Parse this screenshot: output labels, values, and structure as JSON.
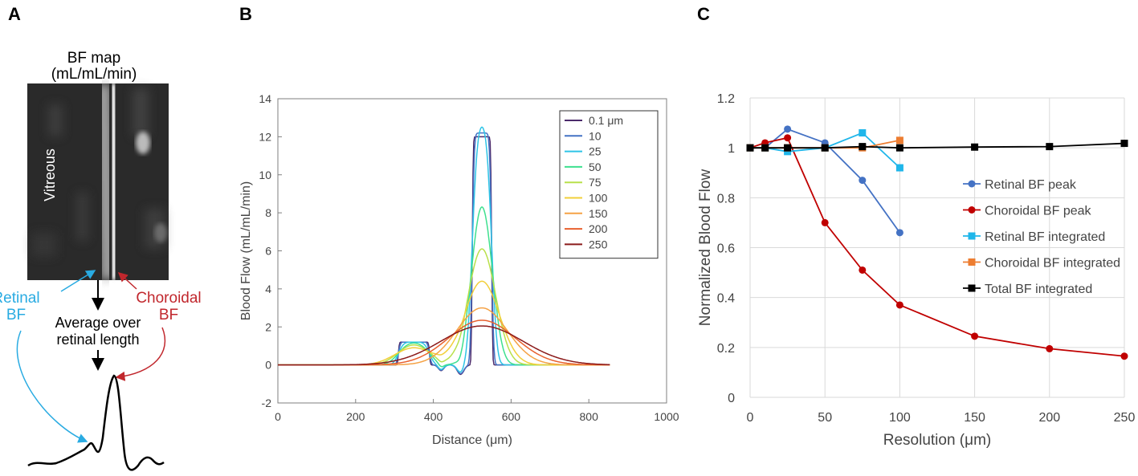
{
  "panels": {
    "a": "A",
    "b": "B",
    "c": "C"
  },
  "panel_a": {
    "title_line1": "BF map",
    "title_line2": "(mL/mL/min)",
    "vitreous_label": "Vitreous",
    "retinal_line1": "Retinal",
    "retinal_line2": "BF",
    "choroidal_line1": "Choroidal",
    "choroidal_line2": "BF",
    "average_line1": "Average over",
    "average_line2": "retinal length",
    "colors": {
      "retinal": "#29abe2",
      "choroidal": "#c1272d"
    }
  },
  "chart_data": [
    {
      "id": "B",
      "type": "line",
      "xlabel": "Distance (μm)",
      "ylabel": "Blood Flow (mL/mL/min)",
      "xlim": [
        0,
        1000
      ],
      "ylim": [
        -2,
        14
      ],
      "xticks": [
        0,
        200,
        400,
        600,
        800,
        1000
      ],
      "yticks": [
        -2,
        0,
        2,
        4,
        6,
        8,
        10,
        12,
        14
      ],
      "legend_position": "top-right",
      "legend_unit": "μm",
      "series": [
        {
          "name": "0.1",
          "color": "#4b2a6b",
          "retinal_peak": 1.2,
          "choroidal_peak": 12.0,
          "sigma": 1
        },
        {
          "name": "10",
          "color": "#4472c4",
          "retinal_peak": 1.2,
          "choroidal_peak": 12.2,
          "sigma": 10
        },
        {
          "name": "25",
          "color": "#2ec4e6",
          "retinal_peak": 1.2,
          "choroidal_peak": 12.5,
          "sigma": 25
        },
        {
          "name": "50",
          "color": "#3ee08f",
          "retinal_peak": 1.15,
          "choroidal_peak": 8.3,
          "sigma": 50
        },
        {
          "name": "75",
          "color": "#b8e04a",
          "retinal_peak": 1.05,
          "choroidal_peak": 6.1,
          "sigma": 75
        },
        {
          "name": "100",
          "color": "#f2cf3a",
          "retinal_peak": 0.9,
          "choroidal_peak": 4.4,
          "sigma": 100
        },
        {
          "name": "150",
          "color": "#f5a245",
          "retinal_peak": 0.0,
          "choroidal_peak": 3.0,
          "sigma": 150
        },
        {
          "name": "200",
          "color": "#e8602e",
          "retinal_peak": 0.0,
          "choroidal_peak": 2.35,
          "sigma": 200
        },
        {
          "name": "250",
          "color": "#8b1a1a",
          "retinal_peak": 0.0,
          "choroidal_peak": 2.05,
          "sigma": 250
        }
      ]
    },
    {
      "id": "C",
      "type": "line",
      "xlabel": "Resolution (μm)",
      "ylabel": "Normalized Blood Flow",
      "xlim": [
        0,
        250
      ],
      "ylim": [
        0,
        1.2
      ],
      "xticks": [
        0,
        50,
        100,
        150,
        200,
        250
      ],
      "yticks": [
        0,
        0.2,
        0.4,
        0.6,
        0.8,
        1,
        1.2
      ],
      "grid": true,
      "legend_position": "right",
      "series": [
        {
          "name": "Retinal BF peak",
          "color": "#4472c4",
          "marker": "circle",
          "x": [
            0,
            10,
            25,
            50,
            75,
            100
          ],
          "y": [
            1.0,
            1.0,
            1.075,
            1.02,
            0.87,
            0.66
          ]
        },
        {
          "name": "Choroidal BF peak",
          "color": "#c00000",
          "marker": "circle",
          "x": [
            0,
            10,
            25,
            50,
            75,
            100,
            150,
            200,
            250
          ],
          "y": [
            1.0,
            1.02,
            1.04,
            0.7,
            0.51,
            0.37,
            0.245,
            0.195,
            0.165
          ]
        },
        {
          "name": "Retinal BF integrated",
          "color": "#1fb6ea",
          "marker": "square",
          "x": [
            0,
            10,
            25,
            50,
            75,
            100
          ],
          "y": [
            1.0,
            1.0,
            0.985,
            1.0,
            1.06,
            0.92
          ]
        },
        {
          "name": "Choroidal BF integrated",
          "color": "#ed7d31",
          "marker": "square",
          "x": [
            0,
            10,
            25,
            50,
            75,
            100
          ],
          "y": [
            1.0,
            1.0,
            1.0,
            1.0,
            1.0,
            1.03
          ]
        },
        {
          "name": "Total BF integrated",
          "color": "#000000",
          "marker": "square",
          "x": [
            0,
            10,
            25,
            50,
            75,
            100,
            150,
            200,
            250
          ],
          "y": [
            1.0,
            1.0,
            1.0,
            1.0,
            1.005,
            1.0,
            1.003,
            1.005,
            1.018
          ]
        }
      ]
    }
  ]
}
